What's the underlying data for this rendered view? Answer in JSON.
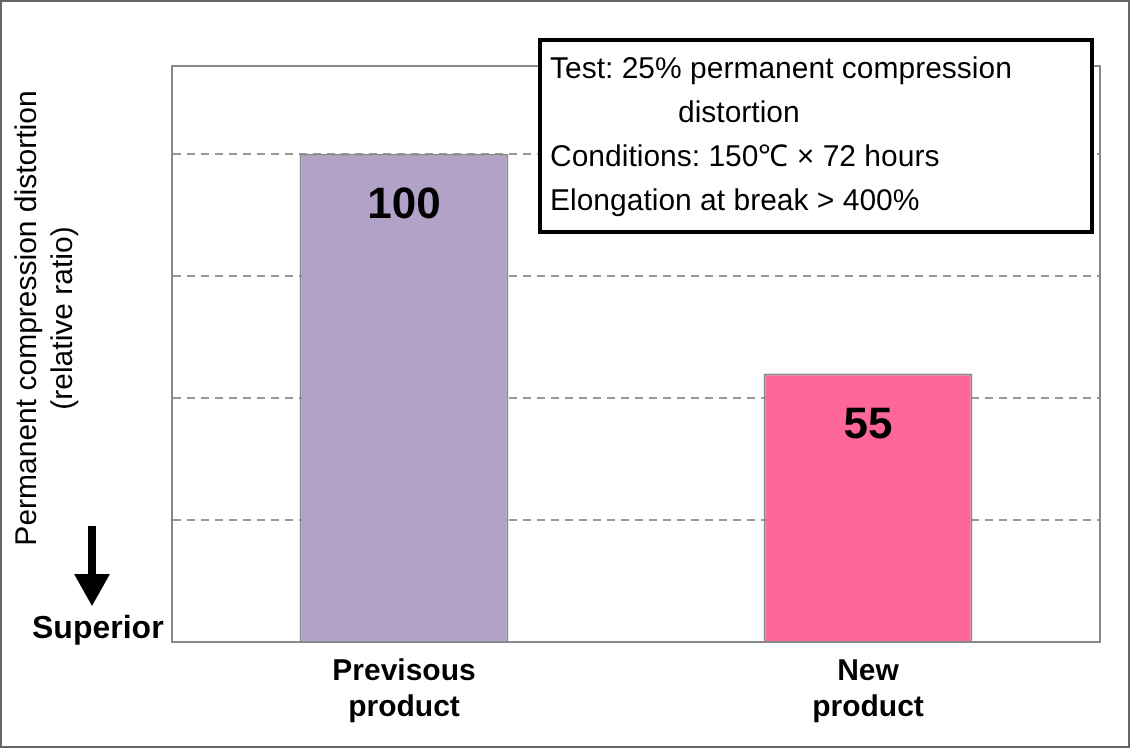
{
  "chart_data": {
    "type": "bar",
    "ylabel": "Permanent compression distortion (relative ratio)",
    "categories": [
      "Previsous product",
      "New product"
    ],
    "values": [
      100,
      55
    ],
    "colors": [
      "#b3a2c7",
      "#ff6699"
    ],
    "data_labels": true,
    "ylim": [
      0,
      118
    ],
    "yticks": [
      {
        "value": 0,
        "label": null
      },
      {
        "value": 25,
        "label": null
      },
      {
        "value": 50,
        "label": null
      },
      {
        "value": 75,
        "label": null
      },
      {
        "value": 100,
        "label": null
      }
    ],
    "tick_labels": "x",
    "grid": "y",
    "annotations": [
      "Test: 25% permanent compression distortion",
      "Conditions: 150℃ × 72 hours",
      "Elongation at break > 400%",
      "Superior"
    ]
  }
}
